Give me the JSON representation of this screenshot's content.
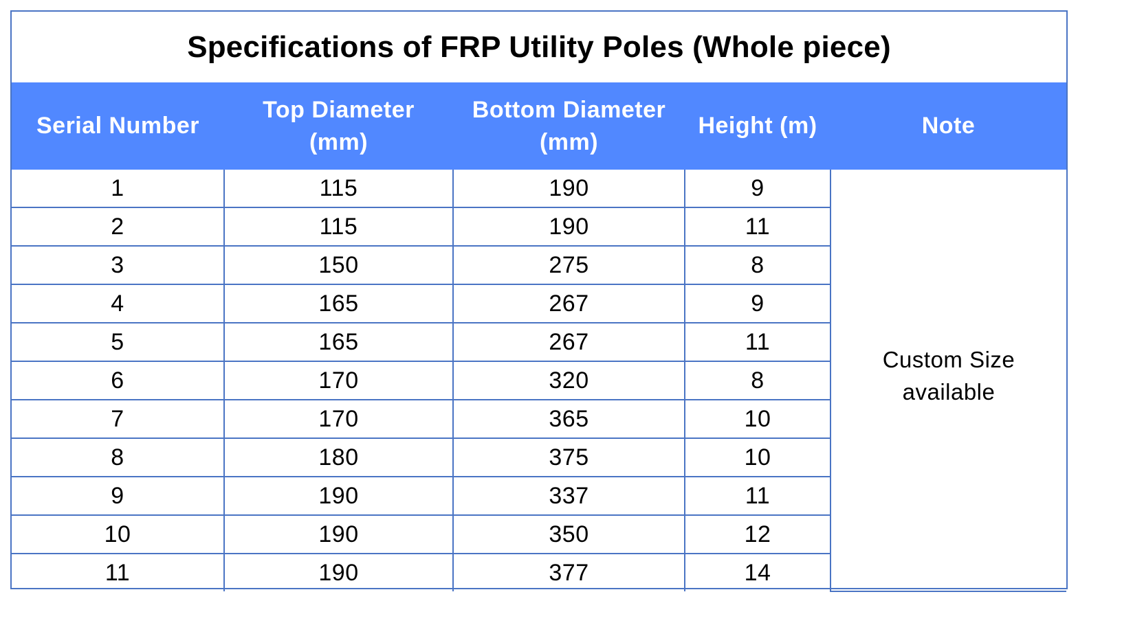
{
  "title": "Specifications of FRP Utility Poles (Whole piece)",
  "headers": {
    "serial": "Serial Number",
    "top_line1": "Top Diameter",
    "top_line2": "(mm)",
    "bottom_line1": "Bottom Diameter",
    "bottom_line2": "(mm)",
    "height": "Height (m)",
    "note": "Note"
  },
  "note": {
    "line1": "Custom Size",
    "line2": "available"
  },
  "rows": [
    {
      "serial": "1",
      "top": "115",
      "bottom": "190",
      "height": "9"
    },
    {
      "serial": "2",
      "top": "115",
      "bottom": "190",
      "height": "11"
    },
    {
      "serial": "3",
      "top": "150",
      "bottom": "275",
      "height": "8"
    },
    {
      "serial": "4",
      "top": "165",
      "bottom": "267",
      "height": "9"
    },
    {
      "serial": "5",
      "top": "165",
      "bottom": "267",
      "height": "11"
    },
    {
      "serial": "6",
      "top": "170",
      "bottom": "320",
      "height": "8"
    },
    {
      "serial": "7",
      "top": "170",
      "bottom": "365",
      "height": "10"
    },
    {
      "serial": "8",
      "top": "180",
      "bottom": "375",
      "height": "10"
    },
    {
      "serial": "9",
      "top": "190",
      "bottom": "337",
      "height": "11"
    },
    {
      "serial": "10",
      "top": "190",
      "bottom": "350",
      "height": "12"
    },
    {
      "serial": "11",
      "top": "190",
      "bottom": "377",
      "height": "14"
    }
  ],
  "colors": {
    "header_bg": "#5188ff",
    "border": "#4a74c4"
  }
}
